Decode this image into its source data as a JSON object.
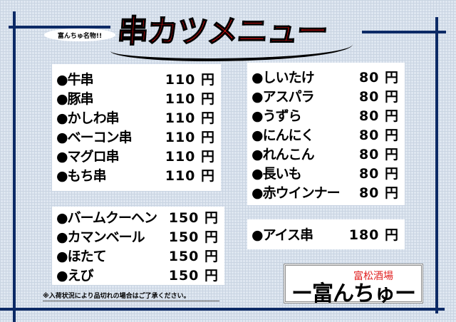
{
  "header": {
    "tagline": "富んちゅ名物!!",
    "title": "串カツメニュー"
  },
  "menu": {
    "group1": [
      {
        "name": "●牛串",
        "price": "110 円"
      },
      {
        "name": "●豚串",
        "price": "110 円"
      },
      {
        "name": "●かしわ串",
        "price": "110 円"
      },
      {
        "name": "●ベーコン串",
        "price": "110 円"
      },
      {
        "name": "●マグロ串",
        "price": "110 円"
      },
      {
        "name": "●もち串",
        "price": "110 円"
      }
    ],
    "group2": [
      {
        "name": "●バームクーヘン",
        "price": "150 円"
      },
      {
        "name": "●カマンベール",
        "price": "150 円"
      },
      {
        "name": "●ほたて",
        "price": "150 円"
      },
      {
        "name": "●えび",
        "price": "150 円"
      }
    ],
    "group3": [
      {
        "name": "●しいたけ",
        "price": "80 円"
      },
      {
        "name": "●アスパラ",
        "price": "80 円"
      },
      {
        "name": "●うずら",
        "price": "80 円"
      },
      {
        "name": "●にんにく",
        "price": "80 円"
      },
      {
        "name": "●れんこん",
        "price": "80 円"
      },
      {
        "name": "●長いも",
        "price": "80 円"
      },
      {
        "name": "●赤ウインナー",
        "price": "80 円"
      }
    ],
    "group4": [
      {
        "name": "●アイス串",
        "price": "180 円"
      }
    ]
  },
  "note": "※入荷状況により品切れの場合はご了承ください。",
  "logo": {
    "sub": "富松酒場",
    "main": "ー富んちゅー"
  },
  "colors": {
    "frame": "#0c2a66",
    "title": "#f01010",
    "logo_sub": "#e02020"
  }
}
